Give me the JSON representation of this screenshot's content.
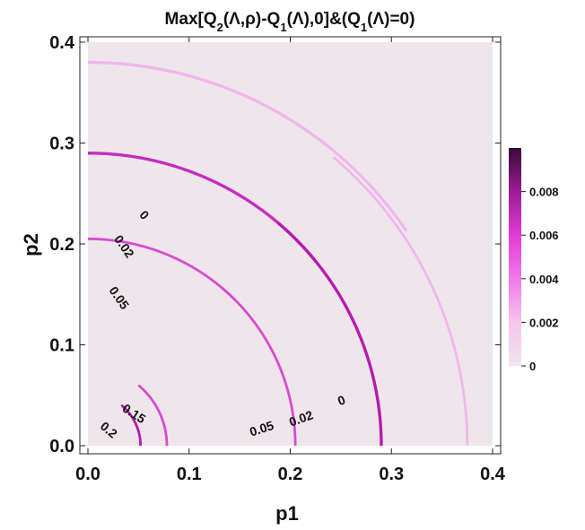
{
  "chart_data": {
    "type": "heatmap",
    "title_parts": [
      {
        "t": "Max[Q"
      },
      {
        "t": "2",
        "sub": true
      },
      {
        "t": "(Λ,ρ)-Q"
      },
      {
        "t": "1",
        "sub": true
      },
      {
        "t": "(Λ),0]&(Q"
      },
      {
        "t": "1",
        "sub": true
      },
      {
        "t": "(Λ)=0)"
      }
    ],
    "xlabel": "p1",
    "ylabel": "p2",
    "xlim": [
      0,
      0.4
    ],
    "ylim": [
      0,
      0.4
    ],
    "x_ticks": [
      {
        "value": 0.0,
        "label": "0.0"
      },
      {
        "value": 0.1,
        "label": "0.1"
      },
      {
        "value": 0.2,
        "label": "0.2"
      },
      {
        "value": 0.3,
        "label": "0.3"
      },
      {
        "value": 0.4,
        "label": "0.4"
      }
    ],
    "y_ticks": [
      {
        "value": 0.0,
        "label": "0.0"
      },
      {
        "value": 0.1,
        "label": "0.1"
      },
      {
        "value": 0.2,
        "label": "0.2"
      },
      {
        "value": 0.3,
        "label": "0.3"
      },
      {
        "value": 0.4,
        "label": "0.4"
      }
    ],
    "background_color": "#efe6ec",
    "colorbar": {
      "range": [
        0,
        0.01
      ],
      "ticks": [
        {
          "value": 0,
          "label": "0"
        },
        {
          "value": 0.002,
          "label": "0.002"
        },
        {
          "value": 0.004,
          "label": "0.004"
        },
        {
          "value": 0.006,
          "label": "0.006"
        },
        {
          "value": 0.008,
          "label": "0.008"
        }
      ],
      "colors": [
        "#efe6ec",
        "#f6c4ee",
        "#f07ae8",
        "#e23bd6",
        "#9a1d93",
        "#3a0a36"
      ]
    },
    "contour_bands": [
      {
        "group": "upper",
        "label": "0",
        "r": 0.38,
        "width": 0.003,
        "color": "#f1b7ec",
        "label_at": 0.214,
        "label_pos": [
          0.055,
          0.228
        ],
        "label_rot": 48
      },
      {
        "group": "upper",
        "label": "0.02",
        "r": 0.29,
        "width": 0.003,
        "color": "#c62cbd",
        "label_at": 0.185,
        "label_pos": [
          0.035,
          0.197
        ],
        "label_rot": 55
      },
      {
        "group": "upper",
        "label": "0.05",
        "r": 0.205,
        "width": 0.0025,
        "color": "#d84ccf",
        "label_at": 0.145,
        "label_pos": [
          0.03,
          0.146
        ],
        "label_rot": 55
      },
      {
        "group": "lower",
        "label": "0",
        "r": 0.375,
        "width": 0.0025,
        "color": "#f1b7ec",
        "label_at": 0.0,
        "label_pos": [
          0.251,
          0.044
        ],
        "label_rot": -22
      },
      {
        "group": "lower",
        "label": "0.02",
        "r": 0.29,
        "width": 0.003,
        "color": "#b81aae",
        "label_at": 0.0,
        "label_pos": [
          0.211,
          0.026
        ],
        "label_rot": -20
      },
      {
        "group": "lower",
        "label": "0.05",
        "r": 0.205,
        "width": 0.0025,
        "color": "#d84ccf",
        "label_at": 0.0,
        "label_pos": [
          0.172,
          0.016
        ],
        "label_rot": -18
      },
      {
        "group": "corner",
        "label": "0.15",
        "r": 0.078,
        "width": 0.0025,
        "color": "#d84ccf",
        "label_at": 0.0,
        "label_pos": [
          0.045,
          0.031
        ],
        "label_rot": 33
      },
      {
        "group": "corner",
        "label": "0.2",
        "r": 0.052,
        "width": 0.0025,
        "color": "#b81aae",
        "label_at": 0.0,
        "label_pos": [
          0.02,
          0.015
        ],
        "label_rot": 40
      }
    ]
  }
}
